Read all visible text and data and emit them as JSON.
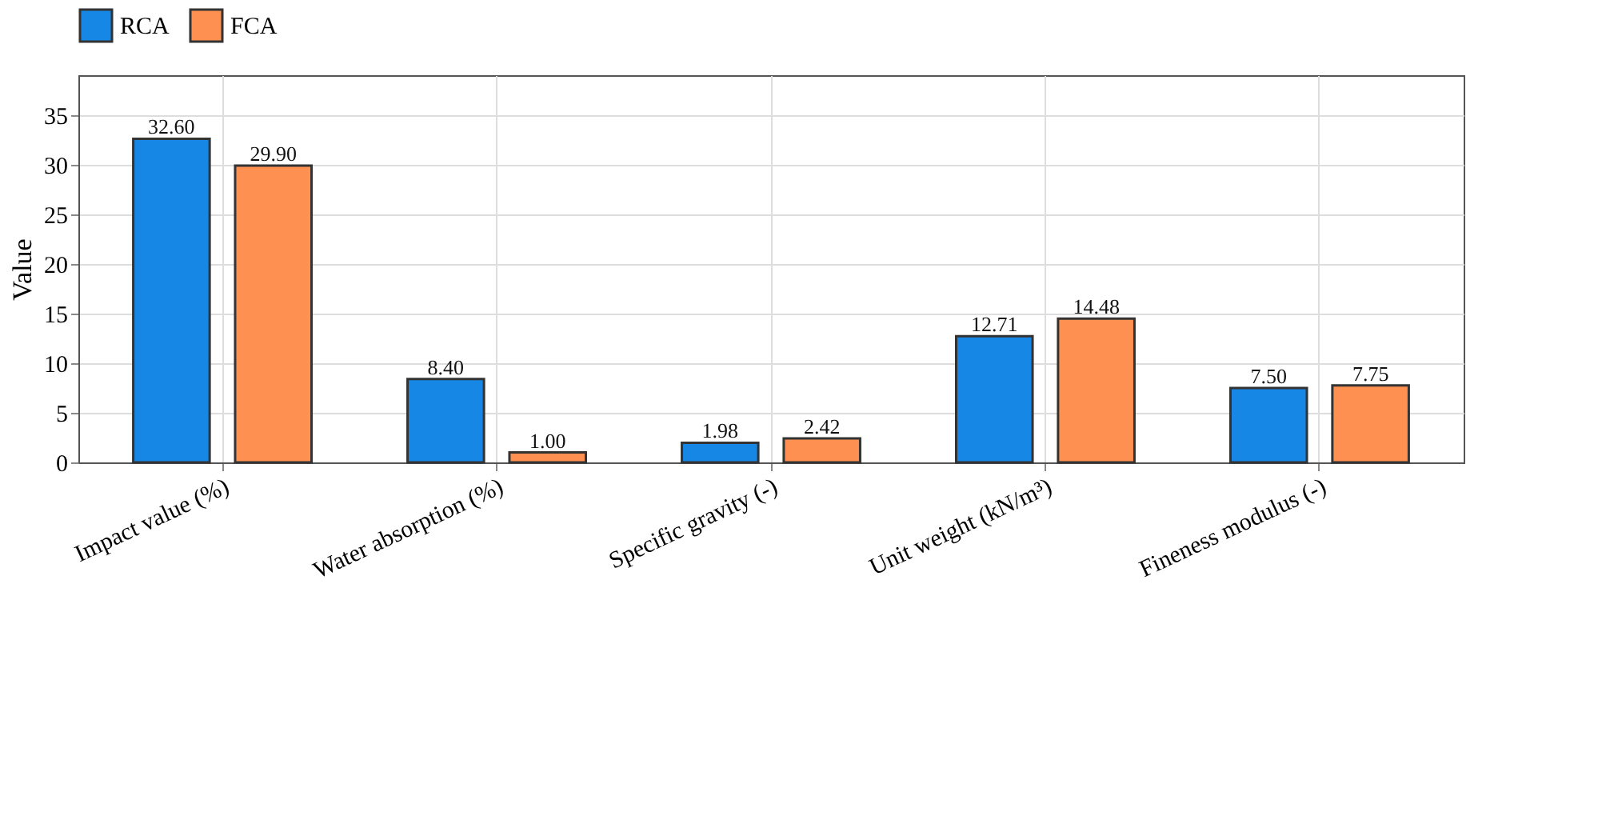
{
  "chart_data": {
    "type": "bar",
    "ylabel": "Value",
    "categories": [
      "Impact value (%)",
      "Water absorption (%)",
      "Specific gravity (-)",
      "Unit weight (kN/m³)",
      "Fineness modulus (-)"
    ],
    "series": [
      {
        "name": "RCA",
        "color": "#1787e6",
        "values": [
          32.6,
          8.4,
          1.98,
          12.71,
          7.5
        ],
        "value_labels": [
          "32.60",
          "8.40",
          "1.98",
          "12.71",
          "7.50"
        ]
      },
      {
        "name": "FCA",
        "color": "#fe9152",
        "values": [
          29.9,
          1.0,
          2.42,
          14.48,
          7.75
        ],
        "value_labels": [
          "29.90",
          "1.00",
          "2.42",
          "14.48",
          "7.75"
        ]
      }
    ],
    "ylim": [
      0,
      39
    ],
    "yticks": [
      0,
      5,
      10,
      15,
      20,
      25,
      30,
      35
    ],
    "grid": true,
    "legend": "top"
  }
}
